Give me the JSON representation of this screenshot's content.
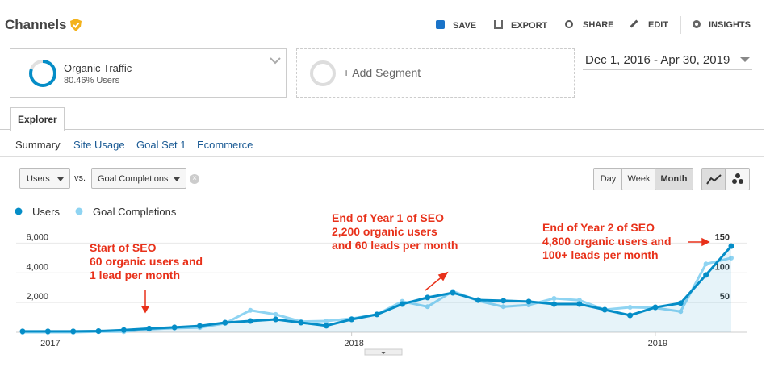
{
  "header": {
    "title": "Channels",
    "actions": [
      "SAVE",
      "EXPORT",
      "SHARE",
      "EDIT",
      "INSIGHTS"
    ]
  },
  "segments": {
    "active": {
      "name": "Organic Traffic",
      "detail": "80.46% Users"
    },
    "add": "+ Add Segment"
  },
  "date_range": "Dec 1, 2016 - Apr 30, 2019",
  "tabs": [
    "Explorer"
  ],
  "subtabs": [
    "Summary",
    "Site Usage",
    "Goal Set 1",
    "Ecommerce"
  ],
  "metric_selector": {
    "primary": "Users",
    "vs": "vs.",
    "secondary": "Goal Completions"
  },
  "granularity": [
    "Day",
    "Week",
    "Month"
  ],
  "chart_data": {
    "type": "line",
    "categories": [
      null,
      "2017",
      null,
      null,
      null,
      null,
      null,
      null,
      null,
      null,
      null,
      null,
      null,
      "2018",
      null,
      null,
      null,
      null,
      null,
      null,
      null,
      null,
      null,
      null,
      null,
      "2019",
      null,
      null,
      null
    ],
    "series": [
      {
        "name": "Users",
        "color": "#058dc7",
        "values": [
          60,
          60,
          60,
          80,
          150,
          250,
          330,
          430,
          650,
          760,
          870,
          650,
          440,
          870,
          1200,
          1900,
          2340,
          2660,
          2170,
          2120,
          2070,
          1900,
          1900,
          1520,
          1140,
          1680,
          1960,
          3860,
          5800
        ]
      },
      {
        "name": "Goal Completions",
        "color": "#8fd4f2",
        "axis": "y2",
        "values": [
          0,
          0,
          0,
          1,
          1,
          5,
          7,
          8,
          15,
          37,
          30,
          18,
          19,
          23,
          30,
          52,
          43,
          69,
          53,
          43,
          46,
          57,
          54,
          38,
          42,
          41,
          35,
          115,
          125
        ]
      }
    ],
    "ylim": [
      0,
      7000
    ],
    "yticks": [
      {
        "value": 2000,
        "label": "2,000"
      },
      {
        "value": 4000,
        "label": "4,000"
      },
      {
        "value": 6000,
        "label": "6,000"
      }
    ],
    "y2lim": [
      0,
      175
    ],
    "y2ticks": [
      50,
      100,
      150
    ],
    "grid": true,
    "annotations": [
      {
        "lines": [
          "Start of SEO",
          "60 organic users and",
          "1 lead per month"
        ]
      },
      {
        "lines": [
          "End of Year 1 of SEO",
          "2,200 organic users",
          "and 60 leads per month"
        ]
      },
      {
        "lines": [
          "End of Year 2 of SEO",
          "4,800 organic users and",
          "100+ leads per month"
        ]
      }
    ]
  }
}
